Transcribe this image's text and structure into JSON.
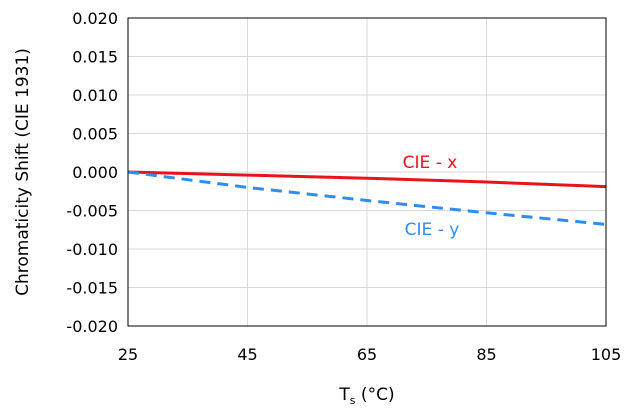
{
  "chart_data": {
    "type": "line",
    "title": "",
    "xlabel_main": "T",
    "xlabel_sub": "s",
    "xlabel_unit": " (°C)",
    "ylabel": "Chromaticity Shift (CIE 1931)",
    "xlim": [
      25,
      105
    ],
    "ylim": [
      -0.02,
      0.02
    ],
    "x_ticks": [
      25,
      45,
      65,
      85,
      105
    ],
    "x_tick_labels": [
      "25",
      "45",
      "65",
      "85",
      "105"
    ],
    "y_ticks": [
      0.02,
      0.015,
      0.01,
      0.005,
      0.0,
      -0.005,
      -0.01,
      -0.015,
      -0.02
    ],
    "y_tick_labels": [
      "0.020",
      "0.015",
      "0.010",
      "0.005",
      "0.000",
      "-0.005",
      "-0.010",
      "-0.015",
      "-0.020"
    ],
    "grid": true,
    "legend": "inline labels",
    "series": [
      {
        "name": "CIE - x",
        "color": "#e8141b",
        "dash": "solid",
        "x": [
          25,
          45,
          65,
          85,
          105
        ],
        "y": [
          0.0,
          -0.0004,
          -0.0008,
          -0.0013,
          -0.0019
        ]
      },
      {
        "name": "CIE - y",
        "color": "#2e8ef0",
        "dash": "dashed",
        "x": [
          25,
          45,
          65,
          85,
          105
        ],
        "y": [
          0.0,
          -0.002,
          -0.0037,
          -0.0053,
          -0.0068
        ]
      }
    ]
  }
}
